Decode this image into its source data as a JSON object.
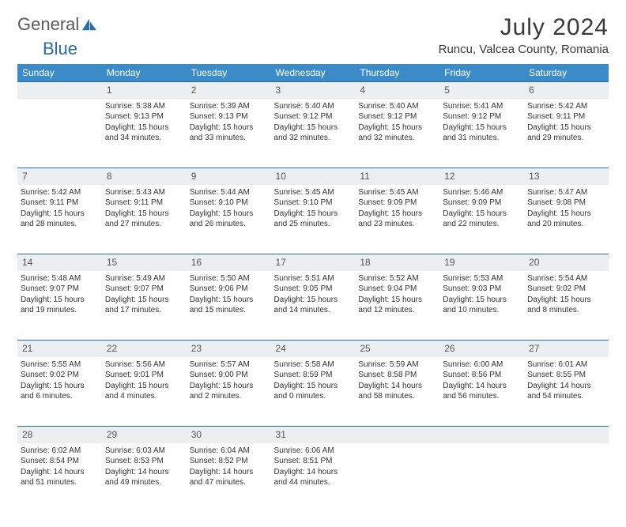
{
  "logo": {
    "general": "General",
    "blue": "Blue"
  },
  "title": "July 2024",
  "location": "Runcu, Valcea County, Romania",
  "colors": {
    "header_bg": "#3b8bc9",
    "header_text": "#ffffff",
    "row_border": "#2a6ca3",
    "daynum_bg": "#eceff1",
    "text": "#333333",
    "logo_gray": "#5a5a5a",
    "logo_blue": "#2a6ca3"
  },
  "weekdays": [
    "Sunday",
    "Monday",
    "Tuesday",
    "Wednesday",
    "Thursday",
    "Friday",
    "Saturday"
  ],
  "first_weekday_index": 1,
  "days": [
    {
      "n": 1,
      "sunrise": "5:38 AM",
      "sunset": "9:13 PM",
      "dl": "15 hours and 34 minutes."
    },
    {
      "n": 2,
      "sunrise": "5:39 AM",
      "sunset": "9:13 PM",
      "dl": "15 hours and 33 minutes."
    },
    {
      "n": 3,
      "sunrise": "5:40 AM",
      "sunset": "9:12 PM",
      "dl": "15 hours and 32 minutes."
    },
    {
      "n": 4,
      "sunrise": "5:40 AM",
      "sunset": "9:12 PM",
      "dl": "15 hours and 32 minutes."
    },
    {
      "n": 5,
      "sunrise": "5:41 AM",
      "sunset": "9:12 PM",
      "dl": "15 hours and 31 minutes."
    },
    {
      "n": 6,
      "sunrise": "5:42 AM",
      "sunset": "9:11 PM",
      "dl": "15 hours and 29 minutes."
    },
    {
      "n": 7,
      "sunrise": "5:42 AM",
      "sunset": "9:11 PM",
      "dl": "15 hours and 28 minutes."
    },
    {
      "n": 8,
      "sunrise": "5:43 AM",
      "sunset": "9:11 PM",
      "dl": "15 hours and 27 minutes."
    },
    {
      "n": 9,
      "sunrise": "5:44 AM",
      "sunset": "9:10 PM",
      "dl": "15 hours and 26 minutes."
    },
    {
      "n": 10,
      "sunrise": "5:45 AM",
      "sunset": "9:10 PM",
      "dl": "15 hours and 25 minutes."
    },
    {
      "n": 11,
      "sunrise": "5:45 AM",
      "sunset": "9:09 PM",
      "dl": "15 hours and 23 minutes."
    },
    {
      "n": 12,
      "sunrise": "5:46 AM",
      "sunset": "9:09 PM",
      "dl": "15 hours and 22 minutes."
    },
    {
      "n": 13,
      "sunrise": "5:47 AM",
      "sunset": "9:08 PM",
      "dl": "15 hours and 20 minutes."
    },
    {
      "n": 14,
      "sunrise": "5:48 AM",
      "sunset": "9:07 PM",
      "dl": "15 hours and 19 minutes."
    },
    {
      "n": 15,
      "sunrise": "5:49 AM",
      "sunset": "9:07 PM",
      "dl": "15 hours and 17 minutes."
    },
    {
      "n": 16,
      "sunrise": "5:50 AM",
      "sunset": "9:06 PM",
      "dl": "15 hours and 15 minutes."
    },
    {
      "n": 17,
      "sunrise": "5:51 AM",
      "sunset": "9:05 PM",
      "dl": "15 hours and 14 minutes."
    },
    {
      "n": 18,
      "sunrise": "5:52 AM",
      "sunset": "9:04 PM",
      "dl": "15 hours and 12 minutes."
    },
    {
      "n": 19,
      "sunrise": "5:53 AM",
      "sunset": "9:03 PM",
      "dl": "15 hours and 10 minutes."
    },
    {
      "n": 20,
      "sunrise": "5:54 AM",
      "sunset": "9:02 PM",
      "dl": "15 hours and 8 minutes."
    },
    {
      "n": 21,
      "sunrise": "5:55 AM",
      "sunset": "9:02 PM",
      "dl": "15 hours and 6 minutes."
    },
    {
      "n": 22,
      "sunrise": "5:56 AM",
      "sunset": "9:01 PM",
      "dl": "15 hours and 4 minutes."
    },
    {
      "n": 23,
      "sunrise": "5:57 AM",
      "sunset": "9:00 PM",
      "dl": "15 hours and 2 minutes."
    },
    {
      "n": 24,
      "sunrise": "5:58 AM",
      "sunset": "8:59 PM",
      "dl": "15 hours and 0 minutes."
    },
    {
      "n": 25,
      "sunrise": "5:59 AM",
      "sunset": "8:58 PM",
      "dl": "14 hours and 58 minutes."
    },
    {
      "n": 26,
      "sunrise": "6:00 AM",
      "sunset": "8:56 PM",
      "dl": "14 hours and 56 minutes."
    },
    {
      "n": 27,
      "sunrise": "6:01 AM",
      "sunset": "8:55 PM",
      "dl": "14 hours and 54 minutes."
    },
    {
      "n": 28,
      "sunrise": "6:02 AM",
      "sunset": "8:54 PM",
      "dl": "14 hours and 51 minutes."
    },
    {
      "n": 29,
      "sunrise": "6:03 AM",
      "sunset": "8:53 PM",
      "dl": "14 hours and 49 minutes."
    },
    {
      "n": 30,
      "sunrise": "6:04 AM",
      "sunset": "8:52 PM",
      "dl": "14 hours and 47 minutes."
    },
    {
      "n": 31,
      "sunrise": "6:06 AM",
      "sunset": "8:51 PM",
      "dl": "14 hours and 44 minutes."
    }
  ],
  "labels": {
    "sunrise": "Sunrise:",
    "sunset": "Sunset:",
    "daylight": "Daylight:"
  }
}
